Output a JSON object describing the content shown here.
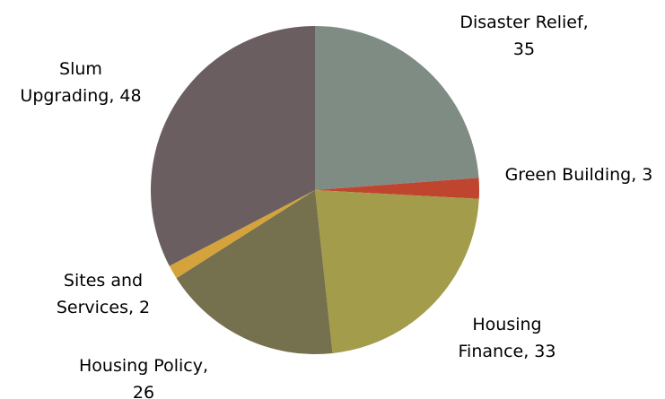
{
  "chart_data": {
    "type": "pie",
    "values": [
      35,
      3,
      33,
      26,
      2,
      48
    ],
    "value_labels": [
      "Disaster Relief, 35",
      "Green Building, 3",
      "Housing Finance, 33",
      "Housing Policy, 26",
      "Sites and Services, 2",
      "Slum Upgrading, 48"
    ],
    "colors": [
      "#7f8c84",
      "#c0452e",
      "#a39c4a",
      "#75704d",
      "#d4a33b",
      "#6a5e60"
    ]
  }
}
